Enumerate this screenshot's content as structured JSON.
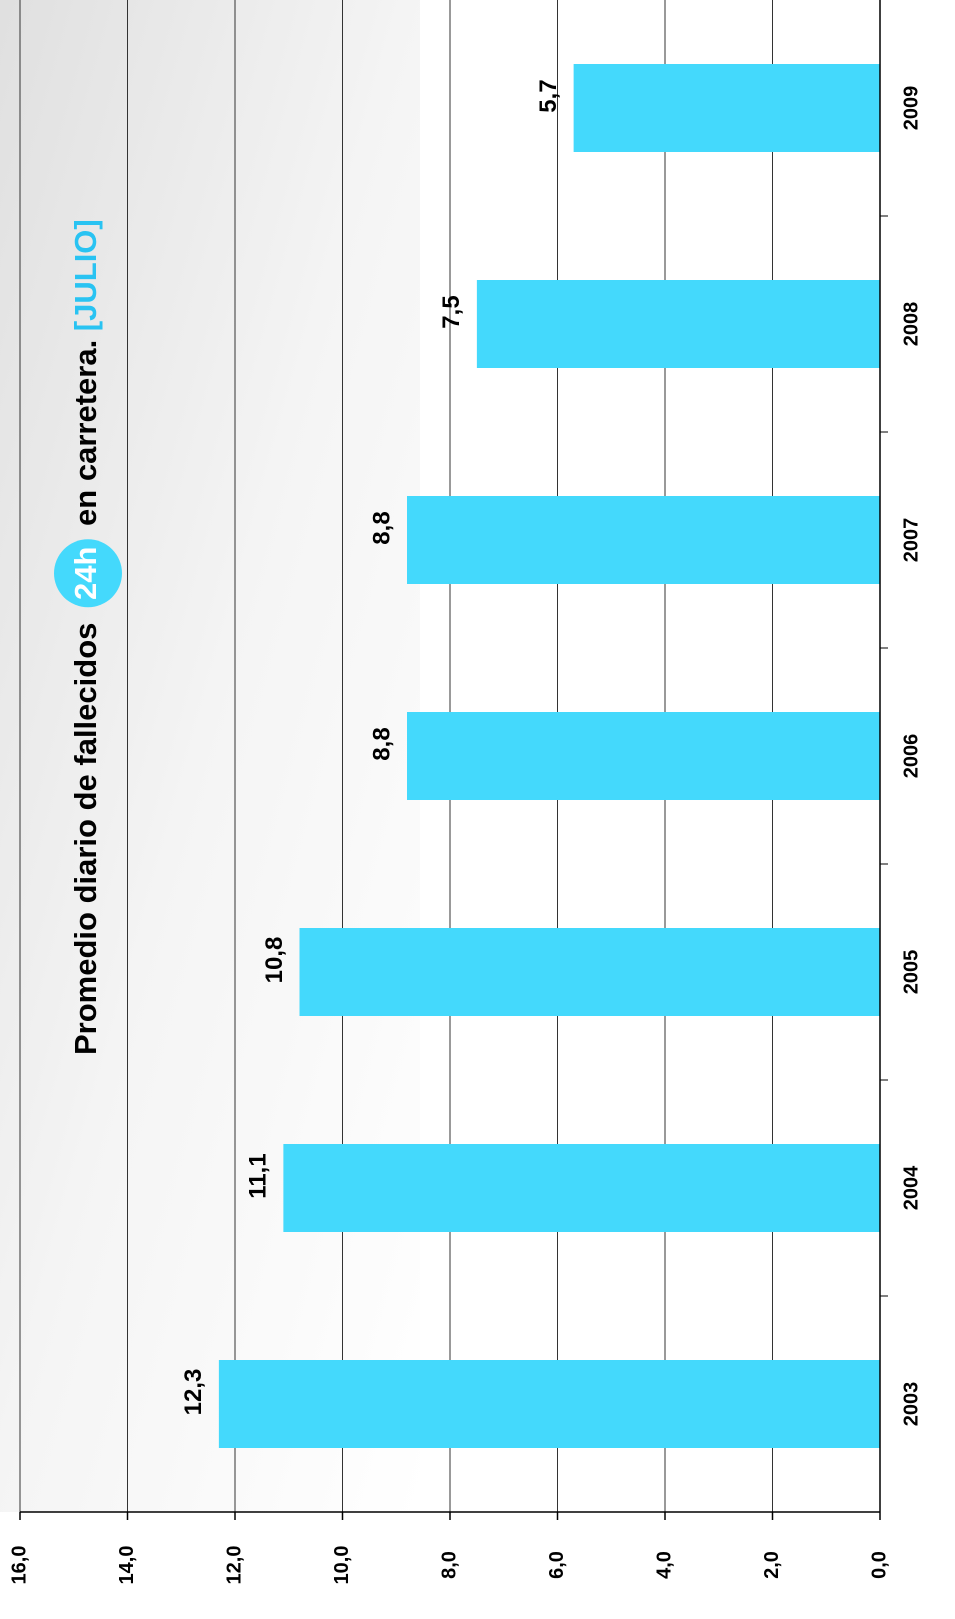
{
  "chart_data": {
    "type": "bar",
    "orientation": "horizontal",
    "title": "Promedio diario de fallecidos",
    "badge": "24h",
    "title_suffix": "en carretera.",
    "subtitle": "[JULIO]",
    "categories": [
      "2003",
      "2004",
      "2005",
      "2006",
      "2007",
      "2008",
      "2009"
    ],
    "values": [
      12.3,
      11.1,
      10.8,
      8.8,
      8.8,
      7.5,
      5.7
    ],
    "value_labels": [
      "12,3",
      "11,1",
      "10,8",
      "8,8",
      "8,8",
      "7,5",
      "5,7"
    ],
    "color": "#44d9fc",
    "ylim": [
      0,
      16
    ],
    "yticks": [
      {
        "value": 0,
        "label": "0,0"
      },
      {
        "value": 2,
        "label": "2,0"
      },
      {
        "value": 4,
        "label": "4,0"
      },
      {
        "value": 6,
        "label": "6,0"
      },
      {
        "value": 8,
        "label": "8,0"
      },
      {
        "value": 10,
        "label": "10,0"
      },
      {
        "value": 12,
        "label": "12,0"
      },
      {
        "value": 14,
        "label": "14,0"
      },
      {
        "value": 16,
        "label": "16,0"
      }
    ],
    "grid": true
  }
}
